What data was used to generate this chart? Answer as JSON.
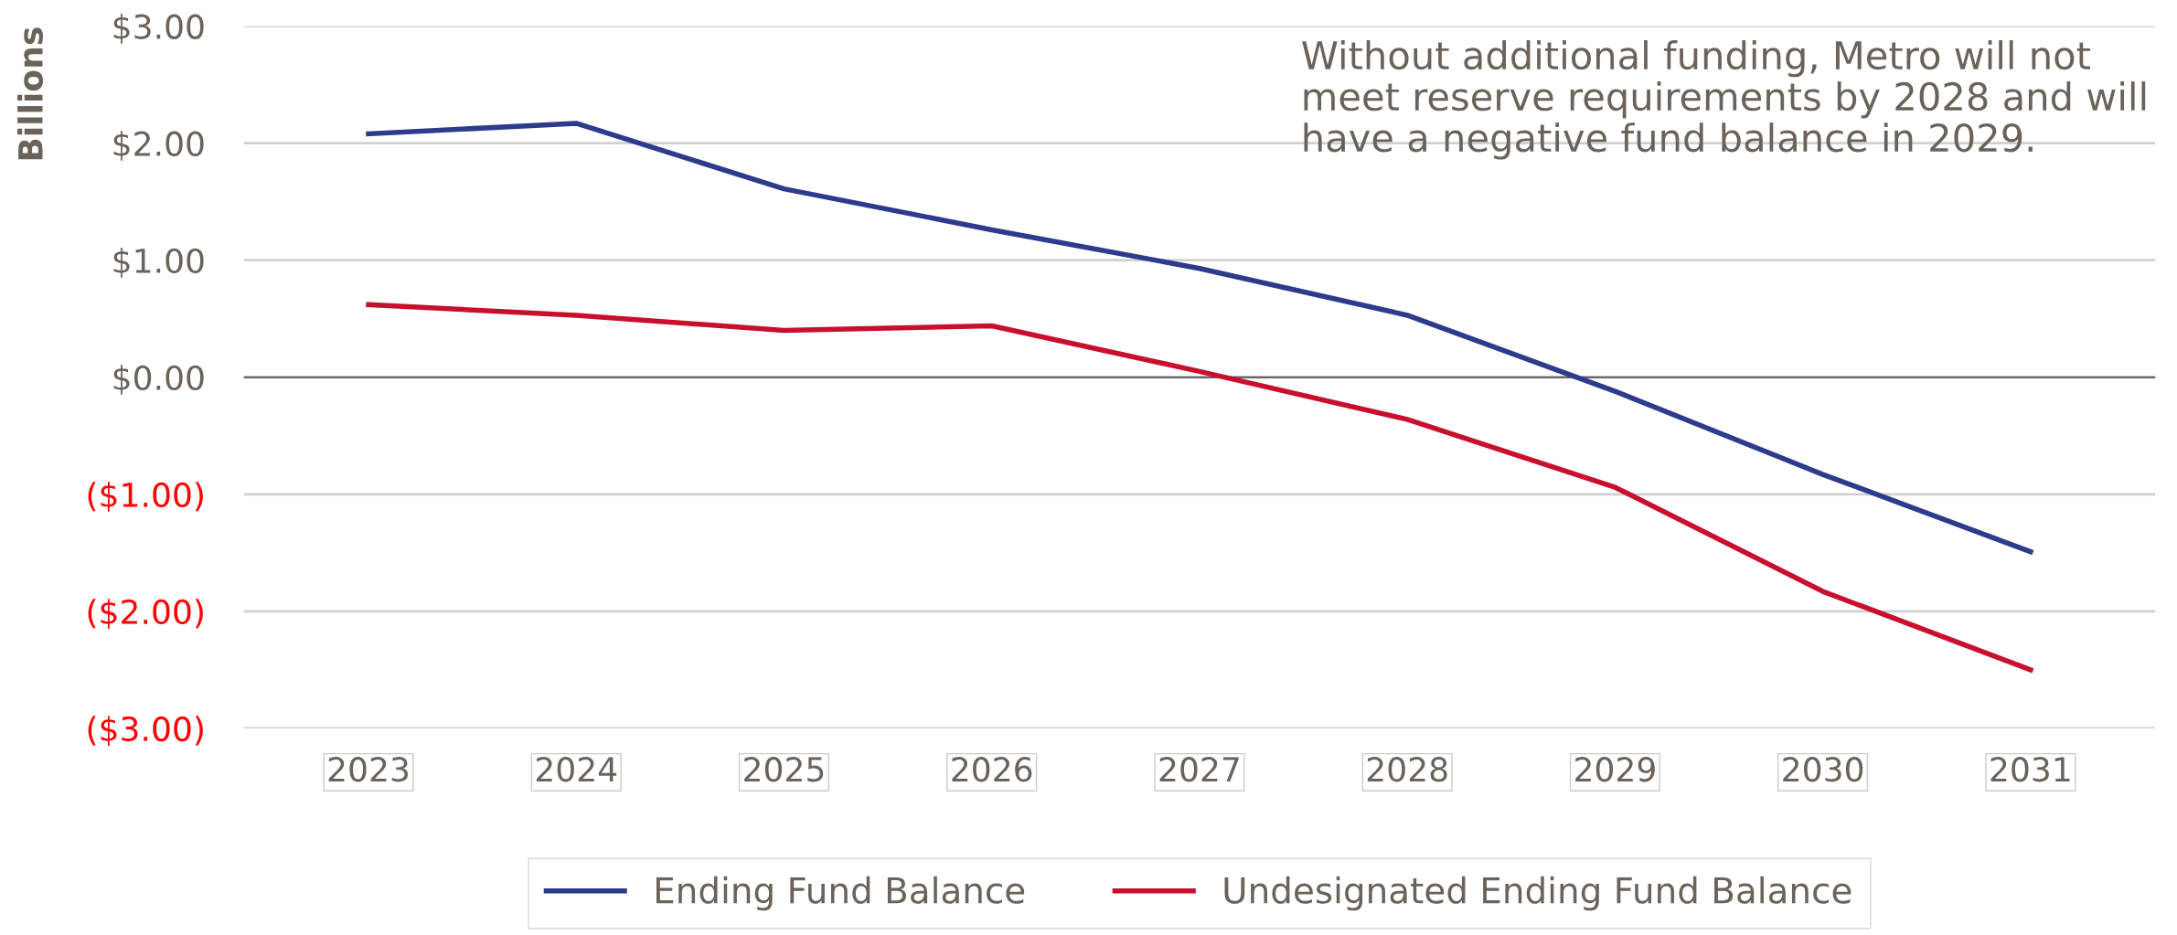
{
  "chart_data": {
    "type": "line",
    "ylabel": "Billions",
    "categories": [
      "2023",
      "2024",
      "2025",
      "2026",
      "2027",
      "2028",
      "2029",
      "2030",
      "2031"
    ],
    "series": [
      {
        "name": "Ending Fund Balance",
        "color": "#2e3a8c",
        "values": [
          2.08,
          2.17,
          1.61,
          1.26,
          0.93,
          0.53,
          -0.12,
          -0.83,
          -1.49
        ]
      },
      {
        "name": "Undesignated Ending Fund Balance",
        "color": "#c8102e",
        "values": [
          0.62,
          0.53,
          0.4,
          0.44,
          0.05,
          -0.36,
          -0.94,
          -1.83,
          -2.5
        ]
      }
    ],
    "ylim": [
      -3,
      3
    ],
    "yticks": [
      {
        "value": -3,
        "label": "($3.00)"
      },
      {
        "value": -2,
        "label": "($2.00)"
      },
      {
        "value": -1,
        "label": "($1.00)"
      },
      {
        "value": 0,
        "label": "$0.00"
      },
      {
        "value": 1,
        "label": "$1.00"
      },
      {
        "value": 2,
        "label": "$2.00"
      },
      {
        "value": 3,
        "label": "$3.00"
      }
    ],
    "ref_lines": [
      {
        "axis": "y",
        "value": 0,
        "color": "#595959"
      }
    ],
    "grid": "y",
    "legend": "bottom",
    "marker": "none",
    "line_style": "solid",
    "annotations": [
      "Without additional funding, Metro will not meet reserve requirements by 2028 and will have a negative fund balance in 2029."
    ]
  }
}
